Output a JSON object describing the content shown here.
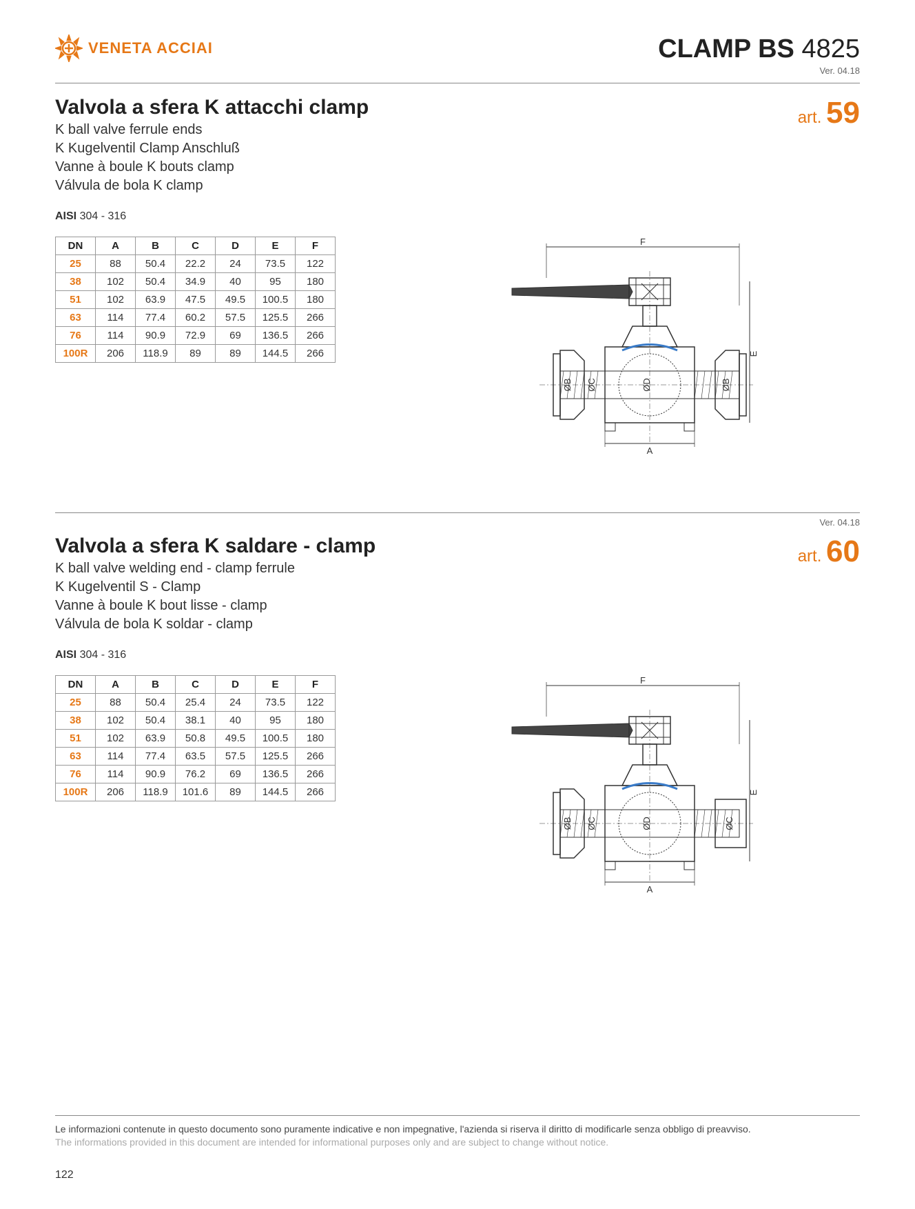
{
  "brand": "VENETA ACCIAI",
  "page_title_bold": "CLAMP BS",
  "page_title_light": "4825",
  "version": "Ver. 04.18",
  "art_label": "art.",
  "aisi_label": "AISI",
  "aisi_value": "304 - 316",
  "colors": {
    "accent": "#e67817",
    "text": "#333333",
    "border": "#999999",
    "diagram_stroke": "#333333",
    "diagram_blue": "#3a7bc8"
  },
  "diagram_labels": {
    "F": "F",
    "E": "E",
    "A": "A",
    "OB": "ØB",
    "OC": "ØC",
    "OD": "ØD"
  },
  "sections": [
    {
      "art_num": "59",
      "title": "Valvola a sfera K attacchi clamp",
      "subtitles": [
        "K ball valve ferrule ends",
        "K Kugelventil Clamp Anschluß",
        "Vanne à boule K bouts clamp",
        "Válvula de bola K clamp"
      ],
      "columns": [
        "DN",
        "A",
        "B",
        "C",
        "D",
        "E",
        "F"
      ],
      "rows": [
        [
          "25",
          "88",
          "50.4",
          "22.2",
          "24",
          "73.5",
          "122"
        ],
        [
          "38",
          "102",
          "50.4",
          "34.9",
          "40",
          "95",
          "180"
        ],
        [
          "51",
          "102",
          "63.9",
          "47.5",
          "49.5",
          "100.5",
          "180"
        ],
        [
          "63",
          "114",
          "77.4",
          "60.2",
          "57.5",
          "125.5",
          "266"
        ],
        [
          "76",
          "114",
          "90.9",
          "72.9",
          "69",
          "136.5",
          "266"
        ],
        [
          "100R",
          "206",
          "118.9",
          "89",
          "89",
          "144.5",
          "266"
        ]
      ]
    },
    {
      "art_num": "60",
      "title": "Valvola a sfera K saldare - clamp",
      "subtitles": [
        "K ball valve welding end - clamp ferrule",
        "K Kugelventil S - Clamp",
        "Vanne à boule K bout lisse - clamp",
        "Válvula de bola K soldar - clamp"
      ],
      "columns": [
        "DN",
        "A",
        "B",
        "C",
        "D",
        "E",
        "F"
      ],
      "rows": [
        [
          "25",
          "88",
          "50.4",
          "25.4",
          "24",
          "73.5",
          "122"
        ],
        [
          "38",
          "102",
          "50.4",
          "38.1",
          "40",
          "95",
          "180"
        ],
        [
          "51",
          "102",
          "63.9",
          "50.8",
          "49.5",
          "100.5",
          "180"
        ],
        [
          "63",
          "114",
          "77.4",
          "63.5",
          "57.5",
          "125.5",
          "266"
        ],
        [
          "76",
          "114",
          "90.9",
          "76.2",
          "69",
          "136.5",
          "266"
        ],
        [
          "100R",
          "206",
          "118.9",
          "101.6",
          "89",
          "144.5",
          "266"
        ]
      ]
    }
  ],
  "footer": {
    "line1": "Le informazioni contenute in questo documento sono puramente indicative e non impegnative, l'azienda si riserva il diritto di modificarle senza obbligo di preavviso.",
    "line2": "The informations provided in this document are intended for informational purposes only and are subject to change without notice.",
    "page_num": "122"
  }
}
